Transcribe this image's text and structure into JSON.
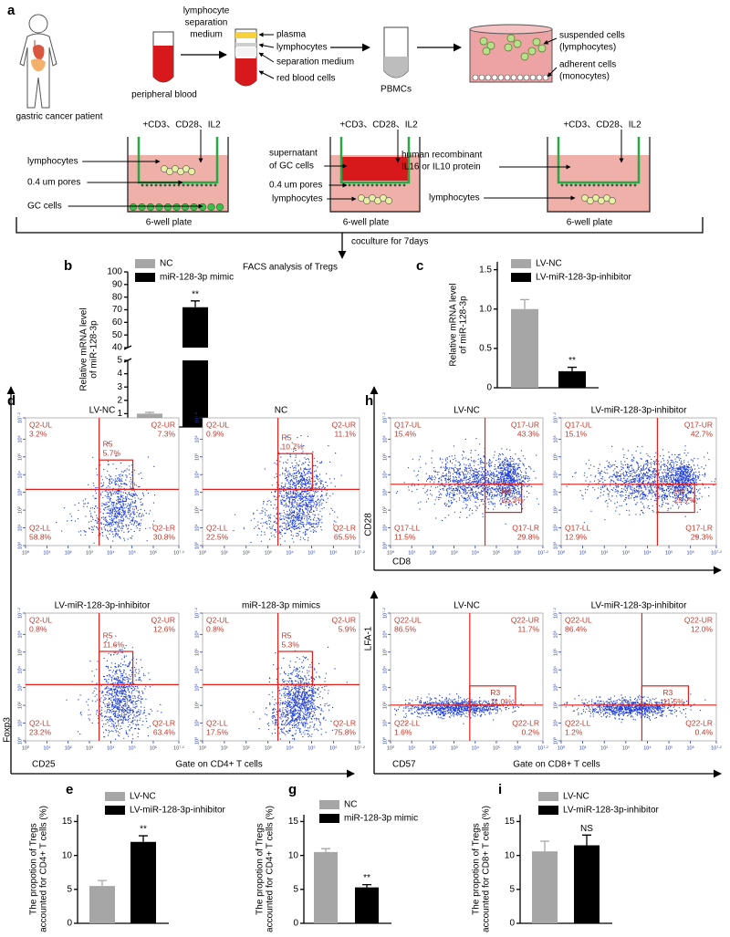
{
  "panel_a": {
    "letter": "a",
    "patient": "gastric cancer patient",
    "blood": "peripheral blood",
    "medium": [
      "lymphocyte",
      "separation",
      "medium"
    ],
    "layers": [
      "plasma",
      "lymphocytes",
      "separation medium",
      "red blood cells"
    ],
    "pbmc": "PBMCs",
    "suspended": [
      "suspended cells",
      "(lymphocytes)"
    ],
    "adherent": [
      "adherent cells",
      "(monocytes)"
    ],
    "transwells": [
      {
        "treatment": "+CD3、CD28、IL2",
        "labels": [
          "lymphocytes",
          "0.4 um pores",
          "GC cells"
        ],
        "plate": "6-well plate"
      },
      {
        "treatment": "+CD3、CD28、IL2",
        "labels": [
          "supernatant",
          "of GC cells",
          "0.4 um pores",
          "lymphocytes"
        ],
        "plate": "6-well plate"
      },
      {
        "treatment": "+CD3、CD28、IL2",
        "labels": [
          "human recombinant",
          "IL16 or IL10 protein",
          "lymphocytes"
        ],
        "plate": "6-well plate"
      }
    ],
    "coculture": "coculture for 7days",
    "facs": "FACS analysis of Tregs"
  },
  "chart_data": [
    {
      "type": "bar",
      "panel": "b",
      "ylabel": [
        "Relative mRNA  level",
        "of miR-128-3p"
      ],
      "series": [
        {
          "name": "NC",
          "color": "#a6a6a6",
          "values": [
            1.0
          ],
          "errors": [
            0.1
          ]
        },
        {
          "name": "miR-128-3p mimic",
          "color": "#000000",
          "values": [
            72
          ],
          "errors": [
            5
          ],
          "annotation": "**"
        }
      ],
      "ylim": [
        0,
        100
      ],
      "axis_break": [
        5,
        40
      ],
      "yticks": [
        0,
        1,
        2,
        3,
        4,
        5,
        40,
        50,
        60,
        70,
        80,
        90,
        100
      ]
    },
    {
      "type": "bar",
      "panel": "c",
      "ylabel": [
        "Relative mRNA  level",
        "of miR-128-3p"
      ],
      "series": [
        {
          "name": "LV-NC",
          "color": "#a6a6a6",
          "values": [
            1.0
          ],
          "errors": [
            0.12
          ]
        },
        {
          "name": "LV-miR-128-3p-inhibitor",
          "color": "#000000",
          "values": [
            0.21
          ],
          "errors": [
            0.05
          ],
          "annotation": "**"
        }
      ],
      "ylim": [
        0,
        1.6
      ],
      "yticks": [
        0,
        0.5,
        {
          "value": 1,
          "label": "1.0"
        },
        1.5
      ]
    },
    {
      "type": "bar",
      "panel": "e",
      "ylabel": [
        "The propotion of Tregs",
        "accounted for CD4+ T cells (%)"
      ],
      "series": [
        {
          "name": "LV-NC",
          "color": "#a6a6a6",
          "values": [
            5.5
          ],
          "errors": [
            0.8
          ]
        },
        {
          "name": "LV-miR-128-3p-inhibitor",
          "color": "#000000",
          "values": [
            12.0
          ],
          "errors": [
            0.9
          ],
          "annotation": "**"
        }
      ],
      "ylim": [
        0,
        16
      ],
      "yticks": [
        0,
        5,
        10,
        15
      ]
    },
    {
      "type": "bar",
      "panel": "g",
      "ylabel": [
        "The propotion of Tregs",
        "accounted for CD4+ T cells (%)"
      ],
      "series": [
        {
          "name": "NC",
          "color": "#a6a6a6",
          "values": [
            10.5
          ],
          "errors": [
            0.5
          ]
        },
        {
          "name": "miR-128-3p mimic",
          "color": "#000000",
          "values": [
            5.3
          ],
          "errors": [
            0.4
          ],
          "annotation": "**"
        }
      ],
      "ylim": [
        0,
        16
      ],
      "yticks": [
        0,
        5,
        10,
        15
      ]
    },
    {
      "type": "bar",
      "panel": "i",
      "ylabel": [
        "The propotion of Tregs",
        "accounted for CD8+ T cells (%)"
      ],
      "series": [
        {
          "name": "LV-NC",
          "color": "#a6a6a6",
          "values": [
            10.6
          ],
          "errors": [
            1.5
          ]
        },
        {
          "name": "LV-miR-128-3p-inhibitor",
          "color": "#000000",
          "values": [
            11.5
          ],
          "errors": [
            1.5
          ],
          "annotation": "NS"
        }
      ],
      "ylim": [
        0,
        16
      ],
      "yticks": [
        0,
        5,
        10,
        15
      ]
    }
  ],
  "flow": {
    "letters": [
      "d",
      "f",
      "h"
    ],
    "axis_ticks": [
      "10⁰",
      "10¹",
      "10²",
      "10³",
      "10⁴",
      "10⁵",
      "10⁶",
      "10⁷·²"
    ],
    "axes": {
      "foxp3": "Foxp3",
      "cd25": "CD25",
      "gate_cd4": "Gate on CD4+ T cells",
      "cd28": "CD28",
      "cd8": "CD8",
      "lfa1": "LFA-1",
      "cd57": "CD57",
      "gate_cd8": "Gate on CD8+ T cells"
    },
    "plots": [
      {
        "title": "LV-NC",
        "quadrants": [
          [
            "Q2-UL",
            "3.2%"
          ],
          [
            "Q2-UR",
            "7.3%"
          ],
          [
            "Q2-LL",
            "58.8%"
          ],
          [
            "Q2-LR",
            "30.8%"
          ]
        ],
        "gate": [
          "R5",
          "5.7%"
        ]
      },
      {
        "title": "LV-miR-128-3p-inhibitor",
        "quadrants": [
          [
            "Q2-UL",
            "0.8%"
          ],
          [
            "Q2-UR",
            "12.6%"
          ],
          [
            "Q2-LL",
            "23.2%"
          ],
          [
            "Q2-LR",
            "63.4%"
          ]
        ],
        "gate": [
          "R5",
          "11.6%"
        ]
      },
      {
        "title": "NC",
        "quadrants": [
          [
            "Q2-UL",
            "0.9%"
          ],
          [
            "Q2-UR",
            "11.1%"
          ],
          [
            "Q2-LL",
            "22.5%"
          ],
          [
            "Q2-LR",
            "65.5%"
          ]
        ],
        "gate": [
          "R5",
          "10.7%"
        ]
      },
      {
        "title": "miR-128-3p mimics",
        "quadrants": [
          [
            "Q2-UL",
            "0.8%"
          ],
          [
            "Q2-UR",
            "5.9%"
          ],
          [
            "Q2-LL",
            "17.5%"
          ],
          [
            "Q2-LR",
            "75.8%"
          ]
        ],
        "gate": [
          "R5",
          "5.3%"
        ]
      },
      {
        "title": "LV-NC",
        "quadrants": [
          [
            "Q17-UL",
            "15.4%"
          ],
          [
            "Q17-UR",
            "43.3%"
          ],
          [
            "Q17-LL",
            "11.5%"
          ],
          [
            "Q17-LR",
            "29.8%"
          ]
        ],
        "gate": [
          "R4",
          "26.3%"
        ]
      },
      {
        "title": "LV-miR-128-3p-inhibitor",
        "quadrants": [
          [
            "Q17-UL",
            "15.1%"
          ],
          [
            "Q17-UR",
            "42.7%"
          ],
          [
            "Q17-LL",
            "12.9%"
          ],
          [
            "Q17-LR",
            "29.3%"
          ]
        ],
        "gate": [
          "R4",
          "25.7%"
        ]
      },
      {
        "title": "LV-NC",
        "quadrants": [
          [
            "Q22-UL",
            "86.5%"
          ],
          [
            "Q22-UR",
            "11.7%"
          ],
          [
            "Q22-LL",
            "1.6%"
          ],
          [
            "Q22-LR",
            "0.2%"
          ]
        ],
        "gate": [
          "R3",
          "11.0%"
        ]
      },
      {
        "title": "LV-miR-128-3p-inhibitor",
        "quadrants": [
          [
            "Q22-UL",
            "86.4%"
          ],
          [
            "Q22-UR",
            "12.0%"
          ],
          [
            "Q22-LL",
            "1.2%"
          ],
          [
            "Q22-LR",
            "0.4%"
          ]
        ],
        "gate": [
          "R3",
          "11.5%"
        ]
      }
    ]
  }
}
